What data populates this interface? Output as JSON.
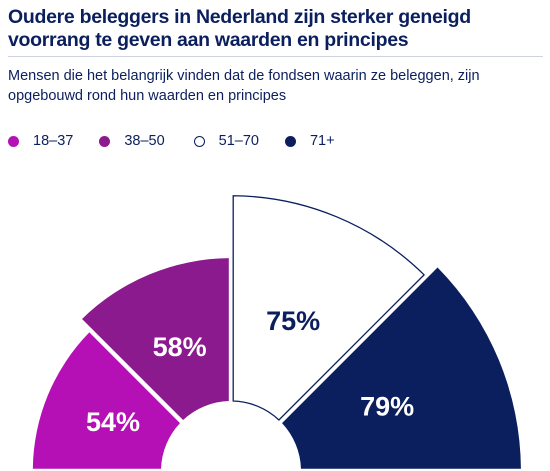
{
  "header": {
    "title": "Oudere beleggers in Nederland zijn sterker geneigd voorrang te geven aan waarden en principes",
    "subtitle": "Mensen die het belangrijk vinden dat de fondsen waarin ze beleggen, zijn opgebouwd rond hun waarden en principes"
  },
  "legend": [
    {
      "label": "18–37",
      "color": "#b510b5",
      "hollow": false
    },
    {
      "label": "38–50",
      "color": "#8a1a8d",
      "hollow": false
    },
    {
      "label": "51–70",
      "color": "#0b1f5e",
      "hollow": true
    },
    {
      "label": "71+",
      "color": "#0b1f5e",
      "hollow": false
    }
  ],
  "chart_data": {
    "type": "polar-area",
    "title": "Oudere beleggers in Nederland zijn sterker geneigd voorrang te geven aan waarden en principes",
    "subtitle": "Mensen die het belangrijk vinden dat de fondsen waarin ze beleggen, zijn opgebouwd rond hun waarden en principes",
    "categories": [
      "18–37",
      "38–50",
      "51–70",
      "71+"
    ],
    "values": [
      54,
      58,
      75,
      79
    ],
    "labels": [
      "54%",
      "58%",
      "75%",
      "79%"
    ],
    "colors": [
      "#b510b5",
      "#8a1a8d",
      "#ffffff",
      "#0b1f5e"
    ],
    "unit": "%"
  }
}
